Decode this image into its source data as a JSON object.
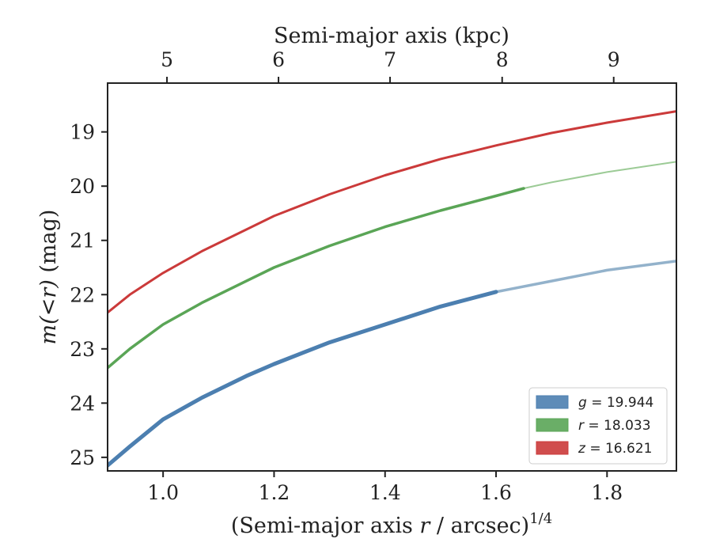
{
  "chart_data": {
    "type": "line",
    "title": "",
    "xlabel": "(Semi-major axis r / arcsec)",
    "xlabel_parts": {
      "pre": "(Semi-major axis ",
      "var": "r",
      "post": " / arcsec)",
      "sup": "1/4"
    },
    "ylabel_parts": {
      "pre": "m(",
      "lt": "<",
      "var": "r",
      "post": ")",
      "unit": " (mag)"
    },
    "top_xlabel": "Semi-major axis (kpc)",
    "xlim": [
      0.9,
      1.925
    ],
    "ylim": [
      25.25,
      18.1
    ],
    "y_inverted": true,
    "x_ticks": [
      1.0,
      1.2,
      1.4,
      1.6,
      1.8
    ],
    "x_tick_labels": [
      "1.0",
      "1.2",
      "1.4",
      "1.6",
      "1.8"
    ],
    "y_ticks": [
      19,
      20,
      21,
      22,
      23,
      24,
      25
    ],
    "y_tick_labels": [
      "19",
      "20",
      "21",
      "22",
      "23",
      "24",
      "25"
    ],
    "top_ticks": [
      {
        "label": "5",
        "x": 1.007
      },
      {
        "label": "6",
        "x": 1.208
      },
      {
        "label": "7",
        "x": 1.409
      },
      {
        "label": "8",
        "x": 1.611
      },
      {
        "label": "9",
        "x": 1.812
      }
    ],
    "grid": false,
    "legend_position": "lower-right",
    "series": [
      {
        "name": "g = 19.944",
        "band": "g",
        "value": "19.944",
        "color": "#4c7fb0",
        "extrapolated_color": "#93b2cb",
        "width": 5,
        "solid_until": 1.6,
        "x": [
          0.9,
          0.94,
          1.0,
          1.07,
          1.15,
          1.2,
          1.3,
          1.4,
          1.5,
          1.6,
          1.7,
          1.8,
          1.925
        ],
        "y": [
          25.15,
          24.8,
          24.3,
          23.9,
          23.5,
          23.28,
          22.88,
          22.55,
          22.22,
          21.95,
          21.75,
          21.55,
          21.38
        ]
      },
      {
        "name": "r = 18.033",
        "band": "r",
        "value": "18.033",
        "color": "#5aa556",
        "extrapolated_color": "#9ccb96",
        "width": 3.5,
        "solid_until": 1.65,
        "x": [
          0.9,
          0.94,
          1.0,
          1.07,
          1.15,
          1.2,
          1.3,
          1.4,
          1.5,
          1.6,
          1.65,
          1.7,
          1.8,
          1.925
        ],
        "y": [
          23.35,
          23.0,
          22.55,
          22.15,
          21.75,
          21.5,
          21.1,
          20.75,
          20.45,
          20.18,
          20.04,
          19.93,
          19.74,
          19.55
        ]
      },
      {
        "name": "z = 16.621",
        "band": "z",
        "value": "16.621",
        "color": "#cb3a3a",
        "extrapolated_color": "#cb3a3a",
        "width": 3,
        "solid_until": 1.925,
        "x": [
          0.9,
          0.94,
          1.0,
          1.07,
          1.15,
          1.2,
          1.3,
          1.4,
          1.5,
          1.6,
          1.7,
          1.8,
          1.925
        ],
        "y": [
          22.33,
          22.0,
          21.6,
          21.2,
          20.8,
          20.55,
          20.15,
          19.8,
          19.5,
          19.25,
          19.02,
          18.83,
          18.62
        ]
      }
    ]
  }
}
